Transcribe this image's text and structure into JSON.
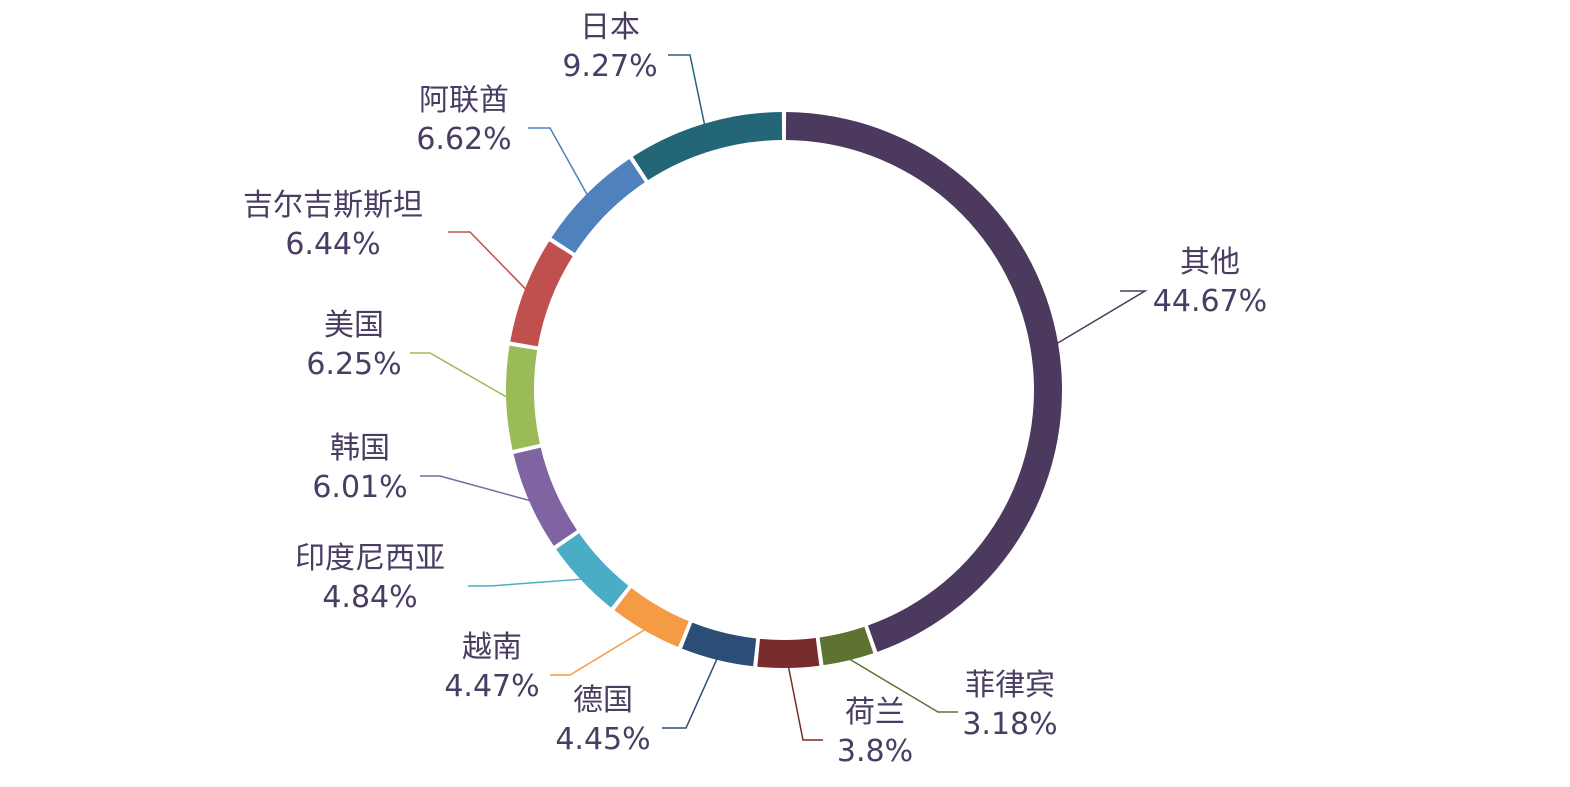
{
  "chart_data": {
    "type": "pie",
    "variant": "donut",
    "title": "",
    "legend": "none",
    "start_angle_deg": 0,
    "direction": "clockwise",
    "slices": [
      {
        "label": "其他",
        "value": 44.67,
        "value_text": "44.67%",
        "color": "#4b3a5e"
      },
      {
        "label": "菲律宾",
        "value": 3.18,
        "value_text": "3.18%",
        "color": "#5e7331"
      },
      {
        "label": "荷兰",
        "value": 3.8,
        "value_text": "3.8%",
        "color": "#782c2c"
      },
      {
        "label": "德国",
        "value": 4.45,
        "value_text": "4.45%",
        "color": "#2c4d75"
      },
      {
        "label": "越南",
        "value": 4.47,
        "value_text": "4.47%",
        "color": "#f59a45"
      },
      {
        "label": "印度尼西亚",
        "value": 4.84,
        "value_text": "4.84%",
        "color": "#4bacc6"
      },
      {
        "label": "韩国",
        "value": 6.01,
        "value_text": "6.01%",
        "color": "#8064a2"
      },
      {
        "label": "美国",
        "value": 6.25,
        "value_text": "6.25%",
        "color": "#9bbb59"
      },
      {
        "label": "吉尔吉斯斯坦",
        "value": 6.44,
        "value_text": "6.44%",
        "color": "#c0504d"
      },
      {
        "label": "阿联酋",
        "value": 6.62,
        "value_text": "6.62%",
        "color": "#4f81bd"
      },
      {
        "label": "日本",
        "value": 9.27,
        "value_text": "9.27%",
        "color": "#236678"
      }
    ]
  }
}
